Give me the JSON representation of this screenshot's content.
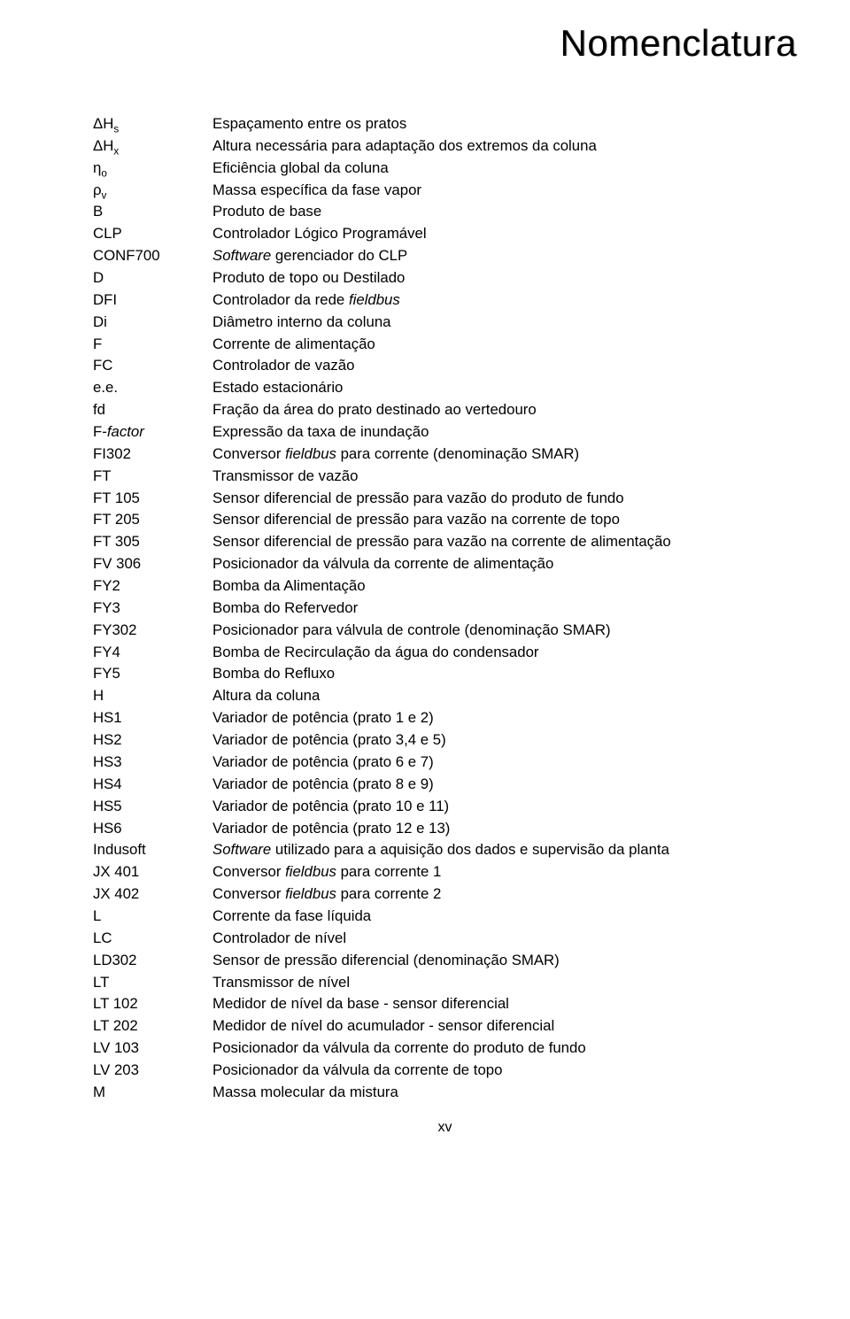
{
  "title": "Nomenclatura",
  "page_number": "xv",
  "font": {
    "body_size_pt": 13,
    "title_size_pt": 32,
    "color": "#000000",
    "background": "#ffffff"
  },
  "rows": [
    {
      "symbol_html": "ΔH<sub>s</sub>",
      "desc": "Espaçamento entre os pratos"
    },
    {
      "symbol_html": "ΔH<sub>x</sub>",
      "desc": "Altura necessária para adaptação dos extremos da coluna"
    },
    {
      "symbol_html": "η<sub>o</sub>",
      "desc": "Eficiência global da coluna"
    },
    {
      "symbol_html": "ρ<sub>v</sub>",
      "desc": "Massa específica da fase vapor"
    },
    {
      "symbol": "B",
      "desc": "Produto de base"
    },
    {
      "symbol": "CLP",
      "desc": "Controlador Lógico Programável"
    },
    {
      "symbol": "CONF700",
      "desc_html": "<span class='ital'>Software</span> gerenciador do CLP"
    },
    {
      "symbol": "D",
      "desc": "Produto de topo ou Destilado"
    },
    {
      "symbol": "DFI",
      "desc_html": "Controlador da rede <span class='ital'>fieldbus</span>"
    },
    {
      "symbol": "Di",
      "desc": "Diâmetro interno da coluna"
    },
    {
      "symbol": "F",
      "desc": "Corrente de alimentação"
    },
    {
      "symbol": "FC",
      "desc": "Controlador de vazão"
    },
    {
      "symbol": "e.e.",
      "desc": "Estado estacionário"
    },
    {
      "symbol": "fd",
      "desc": "Fração da área do prato destinado ao vertedouro"
    },
    {
      "symbol_html": "F-<span class='ital'>factor</span>",
      "desc": "Expressão da taxa de inundação"
    },
    {
      "symbol": "FI302",
      "desc_html": "Conversor <span class='ital'>fieldbus</span> para corrente (denominação SMAR)"
    },
    {
      "symbol": "FT",
      "desc": "Transmissor de vazão"
    },
    {
      "symbol": "FT 105",
      "desc": "Sensor diferencial de pressão para vazão do produto de fundo"
    },
    {
      "symbol": "FT 205",
      "desc": "Sensor diferencial de pressão para vazão na corrente de topo"
    },
    {
      "symbol": "FT 305",
      "desc": "Sensor diferencial de pressão para vazão na corrente de alimentação"
    },
    {
      "symbol": "FV 306",
      "desc": "Posicionador da válvula da corrente de alimentação"
    },
    {
      "symbol": "FY2",
      "desc": "Bomba da Alimentação"
    },
    {
      "symbol": "FY3",
      "desc": "Bomba do Refervedor"
    },
    {
      "symbol": "FY302",
      "desc": "Posicionador para válvula de controle (denominação SMAR)"
    },
    {
      "symbol": "FY4",
      "desc": "Bomba de Recirculação da água do condensador"
    },
    {
      "symbol": "FY5",
      "desc": "Bomba do Refluxo"
    },
    {
      "symbol": "H",
      "desc": "Altura da coluna"
    },
    {
      "symbol": "HS1",
      "desc": "Variador de potência (prato 1 e 2)"
    },
    {
      "symbol": "HS2",
      "desc": "Variador de potência (prato 3,4 e 5)"
    },
    {
      "symbol": "HS3",
      "desc": "Variador de potência (prato 6 e 7)"
    },
    {
      "symbol": "HS4",
      "desc": "Variador de potência (prato 8 e 9)"
    },
    {
      "symbol": "HS5",
      "desc": "Variador de potência (prato 10 e 11)"
    },
    {
      "symbol": "HS6",
      "desc": "Variador de potência (prato 12 e 13)"
    },
    {
      "symbol": "Indusoft",
      "desc_html": "<span class='ital'>Software</span> utilizado para a aquisição dos dados e supervisão da planta"
    },
    {
      "symbol": "JX 401",
      "desc_html": "Conversor <span class='ital'>fieldbus</span> para corrente 1"
    },
    {
      "symbol": "JX 402",
      "desc_html": "Conversor <span class='ital'>fieldbus</span> para corrente 2"
    },
    {
      "symbol": "L",
      "desc": "Corrente da fase líquida"
    },
    {
      "symbol": "LC",
      "desc": "Controlador de nível"
    },
    {
      "symbol": "LD302",
      "desc": "Sensor de pressão diferencial (denominação SMAR)"
    },
    {
      "symbol": "LT",
      "desc": "Transmissor de nível"
    },
    {
      "symbol": "LT 102",
      "desc": "Medidor de nível da base - sensor diferencial"
    },
    {
      "symbol": "LT 202",
      "desc": "Medidor de nível do acumulador - sensor diferencial"
    },
    {
      "symbol": "LV 103",
      "desc": "Posicionador da válvula da corrente do produto de fundo"
    },
    {
      "symbol": "LV 203",
      "desc": "Posicionador da válvula da corrente de topo"
    },
    {
      "symbol": "M",
      "desc": "Massa molecular da mistura"
    }
  ]
}
